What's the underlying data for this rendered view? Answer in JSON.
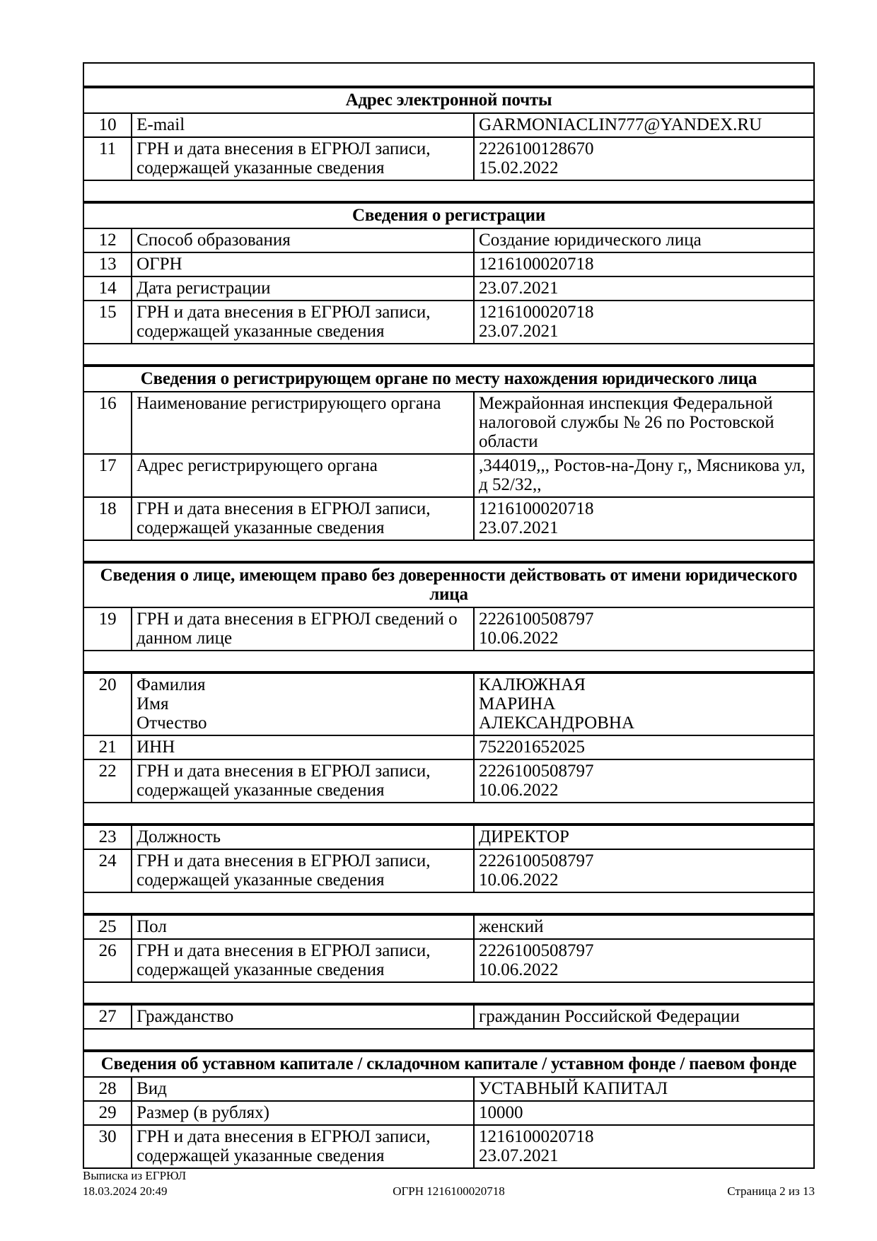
{
  "sections": [
    {
      "title": "Адрес электронной почты",
      "rows": [
        {
          "num": "10",
          "label": "E-mail",
          "value": "GARMONIACLIN777@YANDEX.RU"
        },
        {
          "num": "11",
          "label": "ГРН и дата внесения в ЕГРЮЛ записи,\nсодержащей указанные сведения",
          "value": "2226100128670\n15.02.2022"
        }
      ]
    },
    {
      "title": "Сведения о регистрации",
      "rows": [
        {
          "num": "12",
          "label": "Способ образования",
          "value": "Создание юридического лица"
        },
        {
          "num": "13",
          "label": "ОГРН",
          "value": "1216100020718"
        },
        {
          "num": "14",
          "label": "Дата регистрации",
          "value": "23.07.2021"
        },
        {
          "num": "15",
          "label": "ГРН и дата внесения в ЕГРЮЛ записи,\nсодержащей указанные сведения",
          "value": "1216100020718\n23.07.2021"
        }
      ]
    },
    {
      "title": "Сведения о регистрирующем органе по месту нахождения юридического лица",
      "rows": [
        {
          "num": "16",
          "label": "Наименование регистрирующего органа",
          "value": "Межрайонная инспекция Федеральной\nналоговой службы № 26 по Ростовской\nобласти"
        },
        {
          "num": "17",
          "label": "Адрес регистрирующего органа",
          "value": ",344019,,, Ростов-на-Дону г,, Мясникова ул,\nд 52/32,,"
        },
        {
          "num": "18",
          "label": "ГРН и дата внесения в ЕГРЮЛ записи,\nсодержащей указанные сведения",
          "value": "1216100020718\n23.07.2021"
        }
      ]
    },
    {
      "title": "Сведения о лице, имеющем право без доверенности действовать от имени юридического лица",
      "rows": [
        {
          "num": "19",
          "label": "ГРН и дата внесения в ЕГРЮЛ сведений о\nданном лице",
          "value": "2226100508797\n10.06.2022"
        }
      ]
    },
    {
      "title": "",
      "rows": [
        {
          "num": "20",
          "label": "Фамилия\nИмя\nОтчество",
          "value": "КАЛЮЖНАЯ\nМАРИНА\nАЛЕКСАНДРОВНА"
        },
        {
          "num": "21",
          "label": "ИНН",
          "value": "752201652025"
        },
        {
          "num": "22",
          "label": "ГРН и дата внесения в ЕГРЮЛ записи,\nсодержащей указанные сведения",
          "value": "2226100508797\n10.06.2022"
        }
      ]
    },
    {
      "title": "",
      "rows": [
        {
          "num": "23",
          "label": "Должность",
          "value": "ДИРЕКТОР"
        },
        {
          "num": "24",
          "label": "ГРН и дата внесения в ЕГРЮЛ записи,\nсодержащей указанные сведения",
          "value": "2226100508797\n10.06.2022"
        }
      ]
    },
    {
      "title": "",
      "rows": [
        {
          "num": "25",
          "label": "Пол",
          "value": "женский"
        },
        {
          "num": "26",
          "label": "ГРН и дата внесения в ЕГРЮЛ записи,\nсодержащей указанные сведения",
          "value": "2226100508797\n10.06.2022"
        }
      ]
    },
    {
      "title": "",
      "rows": [
        {
          "num": "27",
          "label": "Гражданство",
          "value": "гражданин Российской Федерации"
        }
      ]
    },
    {
      "title": "Сведения об уставном капитале / складочном капитале / уставном фонде / паевом фонде",
      "rows": [
        {
          "num": "28",
          "label": "Вид",
          "value": "УСТАВНЫЙ КАПИТАЛ"
        },
        {
          "num": "29",
          "label": "Размер (в рублях)",
          "value": "10000"
        },
        {
          "num": "30",
          "label": "ГРН и дата внесения в ЕГРЮЛ записи,\nсодержащей указанные сведения",
          "value": "1216100020718\n23.07.2021"
        }
      ]
    }
  ],
  "footer": {
    "doc_type": "Выписка из ЕГРЮЛ",
    "datetime": "18.03.2024 20:49",
    "ogrn": "ОГРН 1216100020718",
    "page": "Страница 2 из 13"
  },
  "colors": {
    "text": "#000000",
    "border": "#000000",
    "background": "#ffffff"
  }
}
